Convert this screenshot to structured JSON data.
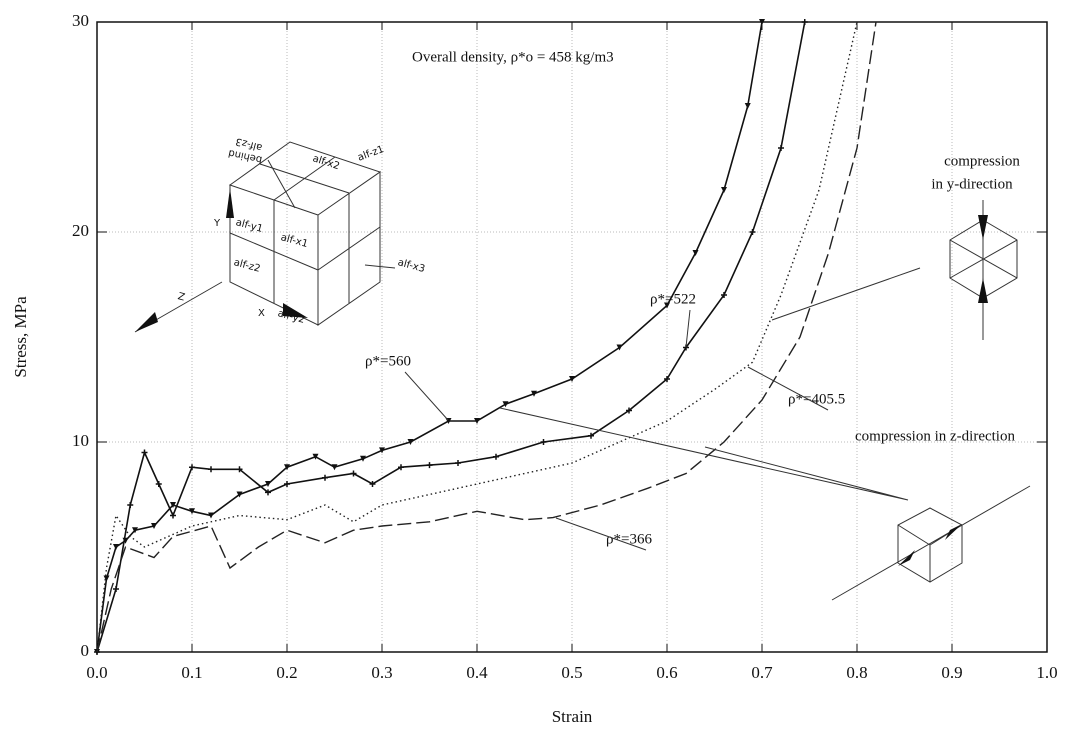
{
  "chart_data": {
    "type": "line",
    "title": "Overall density, ρ*o = 458 kg/m3",
    "x_label": "Strain",
    "y_label": "Stress, MPa",
    "xlim": [
      0,
      1
    ],
    "ylim": [
      0,
      30
    ],
    "xticks": [
      {
        "value": 0,
        "label": "0.0"
      },
      0.1,
      0.2,
      0.3,
      0.4,
      0.5,
      0.6,
      0.7,
      0.8,
      0.9,
      {
        "value": 1,
        "label": "1.0"
      }
    ],
    "yticks": [
      0,
      10,
      20,
      30
    ],
    "grid": true,
    "series": [
      {
        "name": "ρ*=560",
        "color": "#111111",
        "marker": "triangle",
        "dash": "solid",
        "x": [
          0,
          0.01,
          0.02,
          0.03,
          0.04,
          0.06,
          0.08,
          0.1,
          0.12,
          0.15,
          0.18,
          0.2,
          0.23,
          0.25,
          0.28,
          0.3,
          0.33,
          0.37,
          0.4,
          0.43,
          0.46,
          0.5,
          0.55,
          0.6,
          0.63,
          0.66,
          0.685,
          0.7
        ],
        "values": [
          0,
          3.5,
          5,
          5.3,
          5.8,
          6,
          7,
          6.7,
          6.5,
          7.5,
          8,
          8.8,
          9.3,
          8.8,
          9.2,
          9.6,
          10,
          11,
          11,
          11.8,
          12.3,
          13,
          14.5,
          16.5,
          19,
          22,
          26,
          30
        ]
      },
      {
        "name": "ρ*=522",
        "color": "#111111",
        "marker": "plus",
        "dash": "solid",
        "x": [
          0,
          0.02,
          0.035,
          0.05,
          0.065,
          0.08,
          0.1,
          0.12,
          0.15,
          0.18,
          0.2,
          0.24,
          0.27,
          0.29,
          0.32,
          0.35,
          0.38,
          0.42,
          0.47,
          0.52,
          0.56,
          0.6,
          0.62,
          0.66,
          0.69,
          0.72,
          0.745
        ],
        "values": [
          0,
          3,
          7,
          9.5,
          8,
          6.5,
          8.8,
          8.7,
          8.7,
          7.6,
          8,
          8.3,
          8.5,
          8,
          8.8,
          8.9,
          9,
          9.3,
          10,
          10.3,
          11.5,
          13,
          14.5,
          17,
          20,
          24,
          30
        ]
      },
      {
        "name": "ρ*=405.5",
        "color": "#222222",
        "marker": "none",
        "dash": "dotted",
        "x": [
          0,
          0.01,
          0.02,
          0.035,
          0.05,
          0.1,
          0.15,
          0.2,
          0.24,
          0.27,
          0.3,
          0.35,
          0.4,
          0.45,
          0.5,
          0.55,
          0.6,
          0.65,
          0.69,
          0.72,
          0.76,
          0.78,
          0.8
        ],
        "values": [
          0,
          4,
          6.5,
          5.5,
          5,
          6,
          6.5,
          6.3,
          7,
          6.2,
          7,
          7.5,
          8,
          8.5,
          9,
          10,
          11,
          12.5,
          13.8,
          17,
          22,
          26,
          30
        ]
      },
      {
        "name": "ρ*=366",
        "color": "#222222",
        "marker": "none",
        "dash": "dashed",
        "x": [
          0,
          0.015,
          0.03,
          0.06,
          0.08,
          0.12,
          0.14,
          0.17,
          0.2,
          0.24,
          0.27,
          0.3,
          0.35,
          0.4,
          0.45,
          0.48,
          0.53,
          0.58,
          0.62,
          0.66,
          0.7,
          0.74,
          0.77,
          0.8,
          0.82
        ],
        "values": [
          0,
          3,
          5,
          4.5,
          5.5,
          6,
          4,
          5,
          5.8,
          5.2,
          5.8,
          6,
          6.2,
          6.7,
          6.3,
          6.4,
          7,
          7.8,
          8.5,
          10,
          12,
          15,
          19,
          24,
          30
        ]
      }
    ],
    "annotations": [
      "compression",
      "in y-direction",
      "compression in z-direction"
    ],
    "inset": {
      "labels": [
        "alf-x2",
        "alf-z3",
        "behind",
        "alf-z1",
        "alf-y1",
        "alf-x1",
        "alf-z2",
        "alf-y2",
        "alf-x3",
        "Y",
        "X",
        "Z"
      ]
    }
  }
}
